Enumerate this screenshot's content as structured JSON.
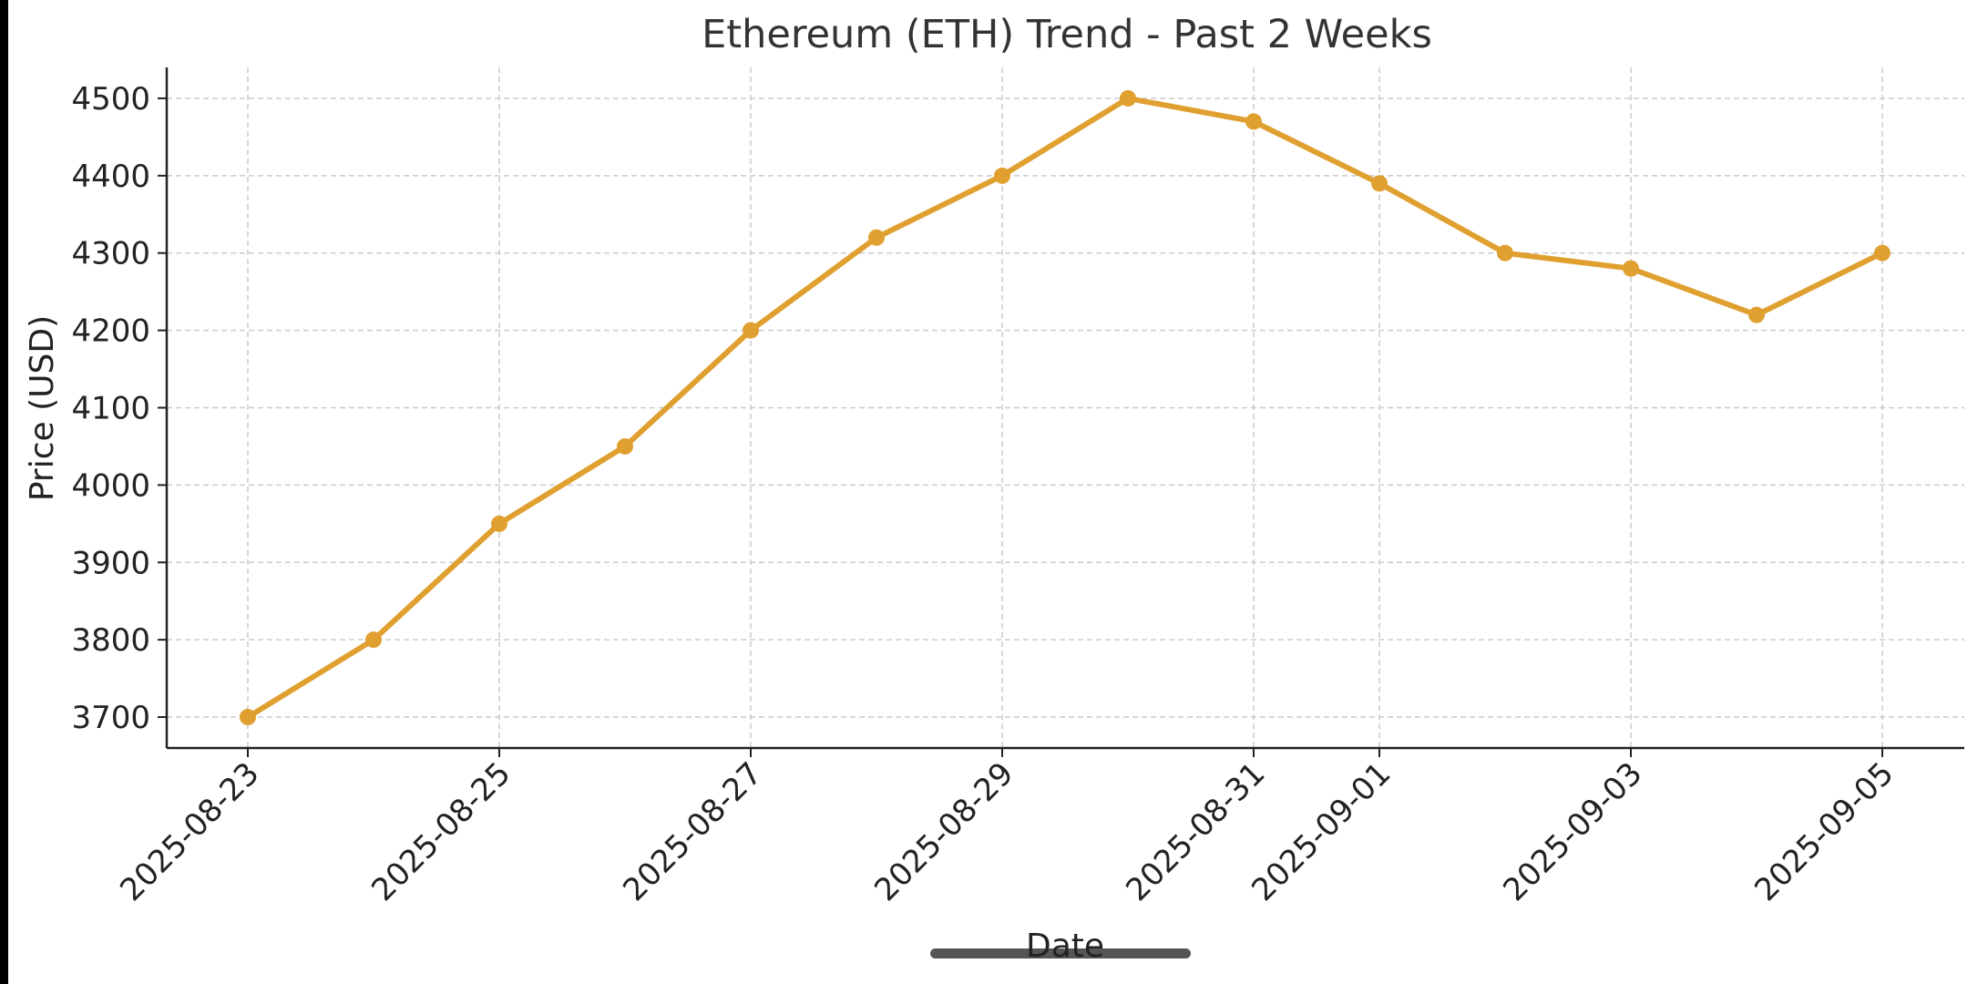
{
  "chart_data": {
    "type": "line",
    "title": "Ethereum (ETH) Trend - Past 2 Weeks",
    "xlabel": "Date",
    "ylabel": "Price (USD)",
    "x": [
      "2025-08-23",
      "2025-08-24",
      "2025-08-25",
      "2025-08-26",
      "2025-08-27",
      "2025-08-28",
      "2025-08-29",
      "2025-08-30",
      "2025-08-31",
      "2025-09-01",
      "2025-09-02",
      "2025-09-03",
      "2025-09-04",
      "2025-09-05"
    ],
    "xticks": [
      "2025-08-23",
      "2025-08-25",
      "2025-08-27",
      "2025-08-29",
      "2025-08-31",
      "2025-09-01",
      "2025-09-03",
      "2025-09-05"
    ],
    "yticks": [
      3700,
      3800,
      3900,
      4000,
      4100,
      4200,
      4300,
      4400,
      4500
    ],
    "ylim": [
      3660,
      4540
    ],
    "grid": true,
    "series": [
      {
        "color": "#e0a030",
        "values": [
          3700,
          3800,
          3950,
          4050,
          4200,
          4320,
          4400,
          4500,
          4470,
          4390,
          4300,
          4280,
          4220,
          4300
        ]
      }
    ]
  }
}
